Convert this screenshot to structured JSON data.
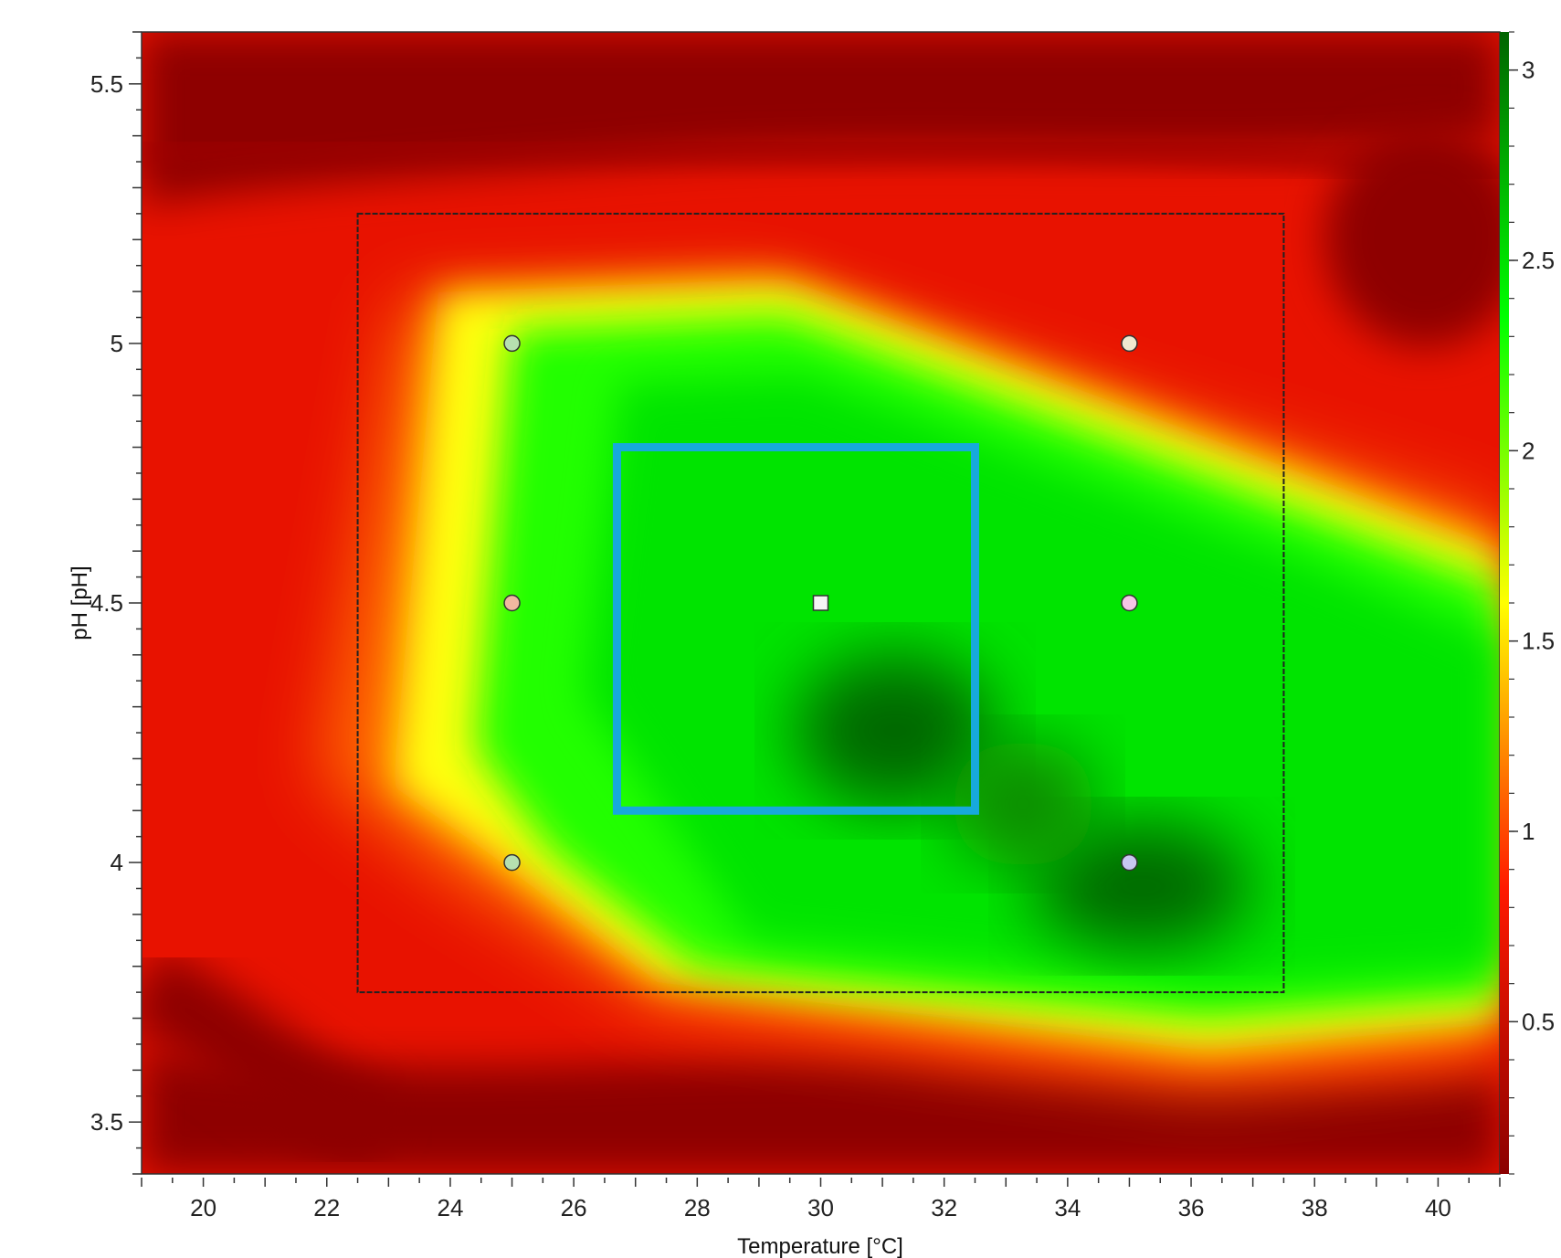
{
  "chart_data": {
    "type": "heatmap",
    "title": "",
    "xlabel": "Temperature [°C]",
    "ylabel": "pH [pH]",
    "xlim": [
      19,
      41
    ],
    "ylim": [
      3.4,
      5.6
    ],
    "x_ticks": [
      20,
      22,
      24,
      26,
      28,
      30,
      32,
      34,
      36,
      38,
      40
    ],
    "y_ticks": [
      3.5,
      4,
      4.5,
      5,
      5.5
    ],
    "colorbar": {
      "range": [
        0.1,
        3.1
      ],
      "ticks": [
        0.5,
        1,
        1.5,
        2,
        2.5,
        3
      ],
      "colors": [
        "#8b0000",
        "#ff1a00",
        "#ffff00",
        "#00ff00",
        "#006400"
      ]
    },
    "design_region": {
      "x": [
        22.5,
        37.5
      ],
      "y": [
        3.75,
        5.25
      ]
    },
    "highlight_region": {
      "x": [
        26.7,
        32.5
      ],
      "y": [
        4.1,
        4.8
      ],
      "color": "#17a9dc"
    },
    "points": [
      {
        "x": 25,
        "y": 5.0,
        "shape": "circle",
        "color": "#b6e0b0"
      },
      {
        "x": 35,
        "y": 5.0,
        "shape": "circle",
        "color": "#f0ead0"
      },
      {
        "x": 25,
        "y": 4.5,
        "shape": "circle",
        "color": "#f0b8a0"
      },
      {
        "x": 30,
        "y": 4.5,
        "shape": "square",
        "color": "#f4f4f4"
      },
      {
        "x": 35,
        "y": 4.5,
        "shape": "circle",
        "color": "#f5c6e6"
      },
      {
        "x": 25,
        "y": 4.0,
        "shape": "circle",
        "color": "#b6e0b0"
      },
      {
        "x": 35,
        "y": 4.0,
        "shape": "circle",
        "color": "#c8c8f0"
      }
    ]
  }
}
